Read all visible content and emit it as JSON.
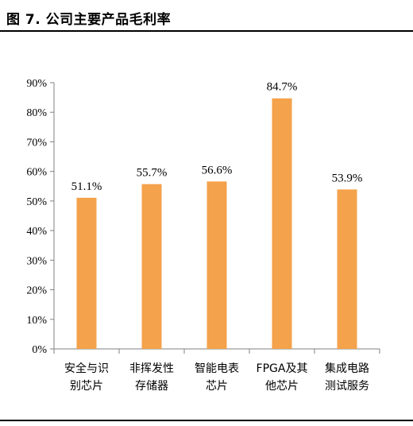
{
  "figure": {
    "title": "图 7. 公司主要产品毛利率"
  },
  "chart_data": {
    "type": "bar",
    "title": "",
    "xlabel": "",
    "ylabel": "",
    "categories": [
      [
        "安全与识",
        "别芯片"
      ],
      [
        "非挥发性",
        "存储器"
      ],
      [
        "智能电表",
        "芯片"
      ],
      [
        "FPGA及其",
        "他芯片"
      ],
      [
        "集成电路",
        "测试服务"
      ]
    ],
    "values": [
      51.1,
      55.7,
      56.6,
      84.7,
      53.9
    ],
    "value_labels": [
      "51.1%",
      "55.7%",
      "56.6%",
      "84.7%",
      "53.9%"
    ],
    "ylim": [
      0,
      90
    ],
    "yticks": [
      "0%",
      "10%",
      "20%",
      "30%",
      "40%",
      "50%",
      "60%",
      "70%",
      "80%",
      "90%"
    ],
    "grid": false,
    "legend": "none",
    "bar_color": "#F4A24B",
    "axis_color": "#808080"
  }
}
